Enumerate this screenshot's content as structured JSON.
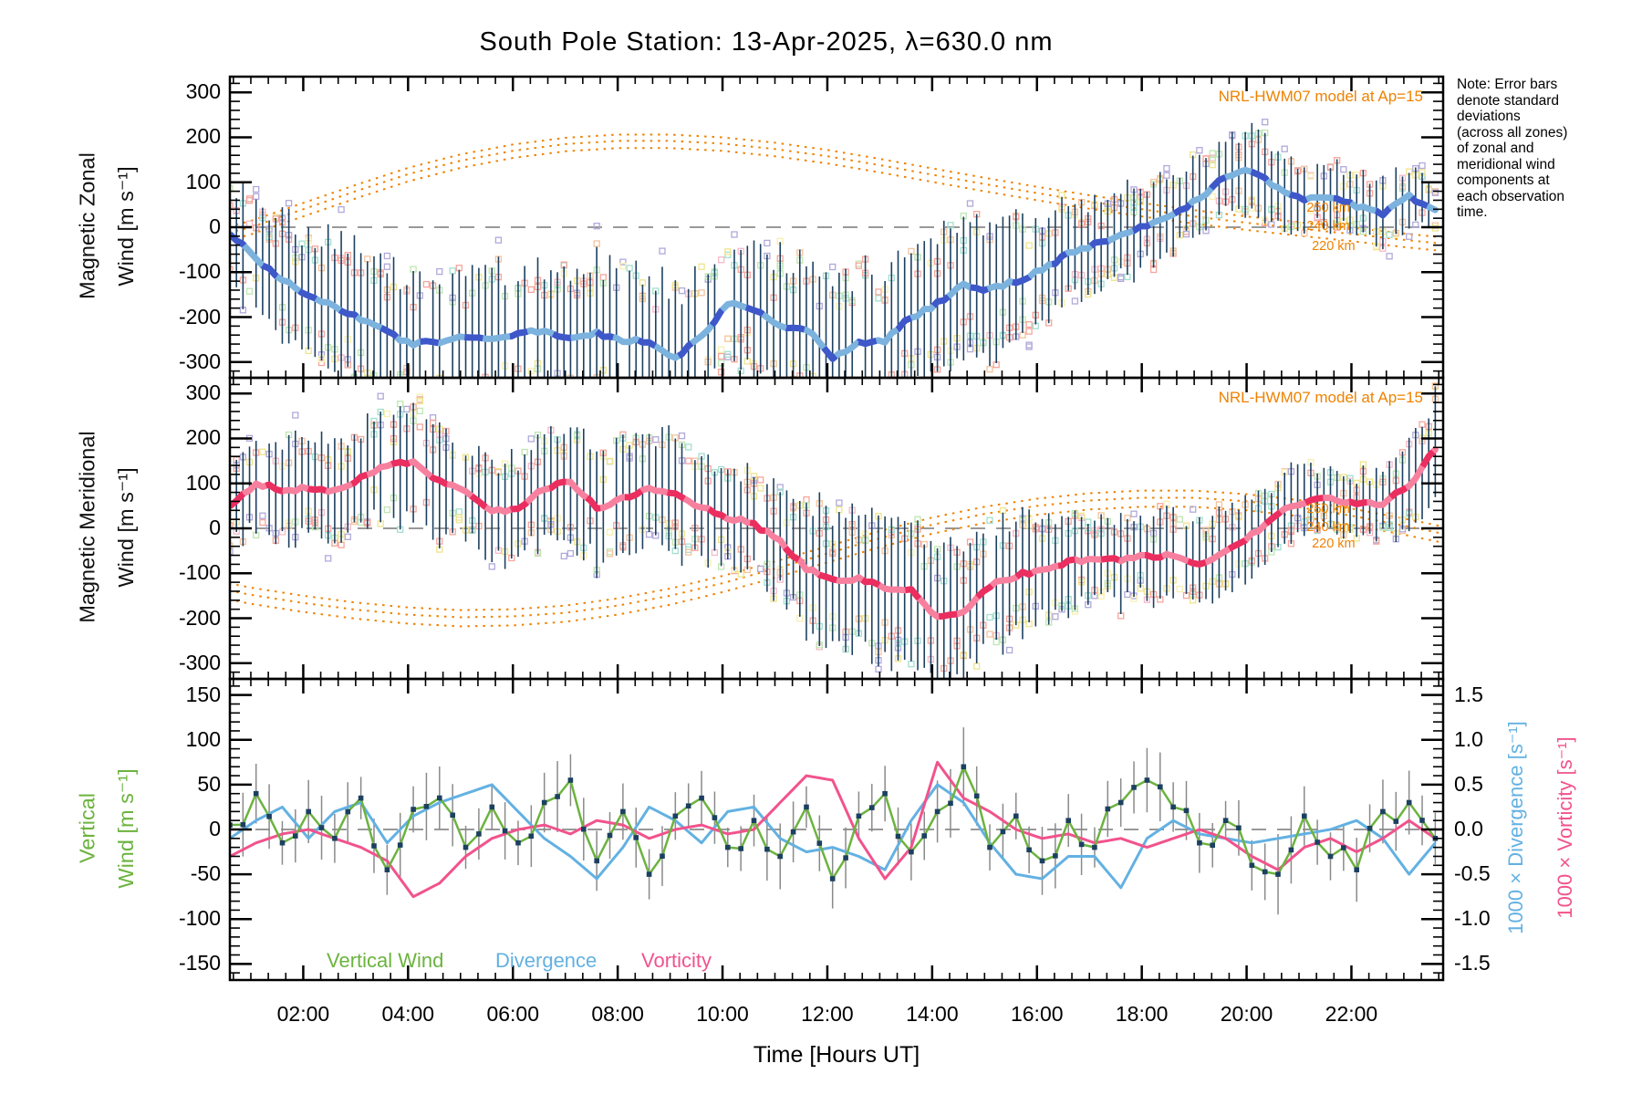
{
  "title": "South Pole Station: 13-Apr-2025, λ=630.0 nm",
  "note": "Note: Error bars\ndenote standard\ndeviations\n(across all zones)\nof zonal and\nmeridional wind\ncomponents at\neach observation\ntime.",
  "x_axis": {
    "label": "Time [Hours UT]",
    "start_hour": 0.6,
    "end_hour": 23.75,
    "tick_hours": [
      2,
      4,
      6,
      8,
      10,
      12,
      14,
      16,
      18,
      20,
      22
    ],
    "tick_labels": [
      "02:00",
      "04:00",
      "06:00",
      "08:00",
      "10:00",
      "12:00",
      "14:00",
      "16:00",
      "18:00",
      "20:00",
      "22:00"
    ]
  },
  "colors": {
    "errorbar_navy": "#1c4060",
    "zonal_line": "#7cb2de",
    "zonal_line_dark": "#3e57c9",
    "meridional_line": "#f8809f",
    "meridional_line_dark": "#ea2e60",
    "vertical": "#6cb33f",
    "divergence": "#63b1e2",
    "vorticity": "#f1538c",
    "model_orange": "#ee8200",
    "gray_errorbar": "#8a8a8a",
    "zero_dash": "#999999",
    "marker_navy": "#1c4060",
    "scatter_palette": [
      "#f6a69b",
      "#f5c49e",
      "#efe48e",
      "#f8f0b0",
      "#bfe6b2",
      "#a3dfd0",
      "#b0a9da",
      "#f5bac8"
    ]
  },
  "chart_data": [
    {
      "type": "line",
      "name": "magnetic-zonal-wind",
      "ylabel_lines": [
        "Magnetic Zonal",
        "Wind [m s⁻¹]"
      ],
      "ylim": [
        -335,
        335
      ],
      "ytick_values": [
        300,
        200,
        100,
        0,
        -100,
        -200,
        -300
      ],
      "ytick_labels": [
        "300",
        "200",
        "100",
        "0",
        "-100",
        "-200",
        "-300"
      ],
      "annotation": "NRL-HWM07 model at Ap=15",
      "altitude_labels": [
        {
          "text": "250 km",
          "hour": 22.05,
          "value": 40
        },
        {
          "text": "240 km",
          "hour": 22.05,
          "value": 0
        },
        {
          "text": "220 km",
          "hour": 22.15,
          "value": -44
        }
      ],
      "series": {
        "x0": 0.6,
        "dx": 0.5,
        "mean": [
          -15,
          -70,
          -115,
          -150,
          -175,
          -205,
          -235,
          -260,
          -255,
          -245,
          -245,
          -238,
          -230,
          -245,
          -235,
          -252,
          -255,
          -292,
          -245,
          -168,
          -180,
          -222,
          -225,
          -290,
          -258,
          -252,
          -200,
          -170,
          -130,
          -140,
          -120,
          -95,
          -60,
          -38,
          -15,
          5,
          30,
          65,
          115,
          128,
          88,
          62,
          70,
          48,
          28,
          68,
          35
        ],
        "sigma": [
          115,
          125,
          135,
          145,
          150,
          150,
          145,
          140,
          150,
          155,
          150,
          140,
          135,
          150,
          160,
          150,
          140,
          150,
          140,
          130,
          140,
          150,
          160,
          170,
          160,
          150,
          150,
          140,
          150,
          140,
          130,
          120,
          110,
          100,
          90,
          85,
          80,
          80,
          85,
          90,
          80,
          70,
          65,
          60,
          70,
          60,
          55
        ]
      },
      "model": {
        "x0": 0,
        "dx": 1,
        "values": [
          -30,
          0,
          40,
          80,
          118,
          148,
          170,
          185,
          192,
          192,
          186,
          174,
          158,
          138,
          117,
          96,
          76,
          57,
          40,
          24,
          10,
          -3,
          -15,
          -28,
          -40
        ],
        "offsets": [
          14,
          0,
          -16
        ]
      }
    },
    {
      "type": "line",
      "name": "magnetic-meridional-wind",
      "ylabel_lines": [
        "Magnetic Meridional",
        "Wind [m s⁻¹]"
      ],
      "ylim": [
        -335,
        335
      ],
      "ytick_values": [
        300,
        200,
        100,
        0,
        -100,
        -200,
        -300
      ],
      "ytick_labels": [
        "300",
        "200",
        "100",
        "0",
        "-100",
        "-200",
        "-300"
      ],
      "annotation": "NRL-HWM07 model at Ap=15",
      "altitude_labels": [
        {
          "text": "250 km",
          "hour": 22.05,
          "value": 40
        },
        {
          "text": "240 km",
          "hour": 22.05,
          "value": 0
        },
        {
          "text": "220 km",
          "hour": 22.15,
          "value": -36
        }
      ],
      "series": {
        "x0": 0.6,
        "dx": 0.5,
        "mean": [
          45,
          100,
          85,
          88,
          85,
          110,
          140,
          150,
          105,
          80,
          35,
          45,
          90,
          105,
          45,
          65,
          90,
          75,
          45,
          25,
          10,
          -30,
          -90,
          -118,
          -110,
          -135,
          -140,
          -200,
          -185,
          -128,
          -105,
          -92,
          -75,
          -68,
          -70,
          -62,
          -60,
          -78,
          -50,
          -15,
          35,
          60,
          65,
          55,
          55,
          95,
          178
        ],
        "sigma": [
          90,
          100,
          110,
          120,
          110,
          115,
          120,
          125,
          120,
          110,
          100,
          110,
          120,
          130,
          120,
          110,
          115,
          120,
          110,
          100,
          105,
          120,
          140,
          150,
          140,
          150,
          160,
          170,
          160,
          140,
          130,
          120,
          110,
          100,
          95,
          90,
          90,
          95,
          90,
          85,
          80,
          75,
          70,
          65,
          70,
          90,
          110
        ]
      },
      "model": {
        "x0": 0,
        "dx": 1,
        "values": [
          -125,
          -148,
          -166,
          -181,
          -192,
          -198,
          -196,
          -188,
          -172,
          -150,
          -122,
          -90,
          -56,
          -22,
          8,
          32,
          50,
          62,
          68,
          68,
          60,
          47,
          28,
          6,
          -18
        ],
        "offsets": [
          16,
          0,
          -20
        ]
      }
    },
    {
      "type": "line",
      "name": "vertical-wind-divergence-vorticity",
      "ylabel_lines": [
        "Vertical",
        "Wind [m s⁻¹]"
      ],
      "ylim": [
        -168,
        168
      ],
      "ytick_values": [
        150,
        100,
        50,
        0,
        -50,
        -100,
        -150
      ],
      "ytick_labels": [
        "150",
        "100",
        "50",
        "0",
        "-50",
        "-100",
        "-150"
      ],
      "right_ylim": [
        -1.68,
        1.68
      ],
      "right_ytick_values": [
        1.5,
        1.0,
        0.5,
        0.0,
        -0.5,
        -1.0,
        -1.5
      ],
      "right_ytick_labels": [
        "1.5",
        "1.0",
        "0.5",
        "0.0",
        "-0.5",
        "-1.0",
        "-1.5"
      ],
      "right_axis_titles": [
        {
          "text": "1000 × Divergence [s⁻¹]",
          "color_key": "divergence"
        },
        {
          "text": "1000 × Vorticity [s⁻¹]",
          "color_key": "vorticity"
        }
      ],
      "legend": [
        {
          "label": "Vertical Wind",
          "color_key": "vertical"
        },
        {
          "label": "Divergence",
          "color_key": "divergence"
        },
        {
          "label": "Vorticity",
          "color_key": "vorticity"
        }
      ],
      "series": {
        "x0": 0.6,
        "dx": 0.5,
        "vertical_mean": [
          5,
          40,
          -15,
          20,
          -10,
          35,
          -45,
          15,
          50,
          -20,
          25,
          -15,
          30,
          55,
          -35,
          20,
          -50,
          15,
          35,
          -20,
          10,
          -30,
          25,
          -55,
          15,
          40,
          -25,
          20,
          70,
          -20,
          15,
          -35,
          10,
          -20,
          30,
          55,
          25,
          -15,
          10,
          -40,
          -50,
          15,
          -30,
          -45,
          20,
          30,
          -10
        ],
        "vertical_sigma": [
          30,
          35,
          28,
          32,
          30,
          26,
          34,
          30,
          38,
          28,
          30,
          26,
          32,
          36,
          30,
          28,
          34,
          30,
          28,
          26,
          30,
          32,
          28,
          36,
          30,
          28,
          32,
          30,
          40,
          28,
          26,
          32,
          30,
          28,
          30,
          36,
          32,
          28,
          26,
          34,
          38,
          30,
          28,
          32,
          30,
          34,
          28
        ],
        "divergence": [
          -0.1,
          0.1,
          0.25,
          -0.1,
          0.2,
          0.3,
          -0.15,
          0.15,
          0.3,
          0.4,
          0.5,
          0.2,
          -0.1,
          -0.3,
          -0.55,
          -0.2,
          0.25,
          0.1,
          -0.15,
          0.2,
          0.25,
          -0.1,
          -0.25,
          -0.2,
          -0.3,
          -0.45,
          0.1,
          0.5,
          0.3,
          -0.15,
          -0.5,
          -0.55,
          -0.3,
          -0.3,
          -0.65,
          -0.1,
          0.1,
          -0.05,
          -0.1,
          -0.15,
          -0.1,
          -0.05,
          0,
          0.1,
          -0.1,
          -0.5,
          -0.15
        ],
        "vorticity": [
          -0.3,
          -0.15,
          -0.05,
          0,
          -0.1,
          -0.2,
          -0.35,
          -0.75,
          -0.6,
          -0.3,
          -0.1,
          0,
          0.05,
          -0.05,
          0.1,
          0.05,
          -0.1,
          0,
          0.05,
          -0.05,
          0,
          0.3,
          0.6,
          0.55,
          -0.1,
          -0.55,
          -0.2,
          0.75,
          0.35,
          0.2,
          0,
          -0.1,
          -0.05,
          -0.15,
          -0.1,
          -0.2,
          -0.1,
          0,
          -0.1,
          -0.3,
          -0.45,
          -0.2,
          -0.1,
          -0.25,
          -0.1,
          0.1,
          -0.1
        ]
      }
    }
  ]
}
